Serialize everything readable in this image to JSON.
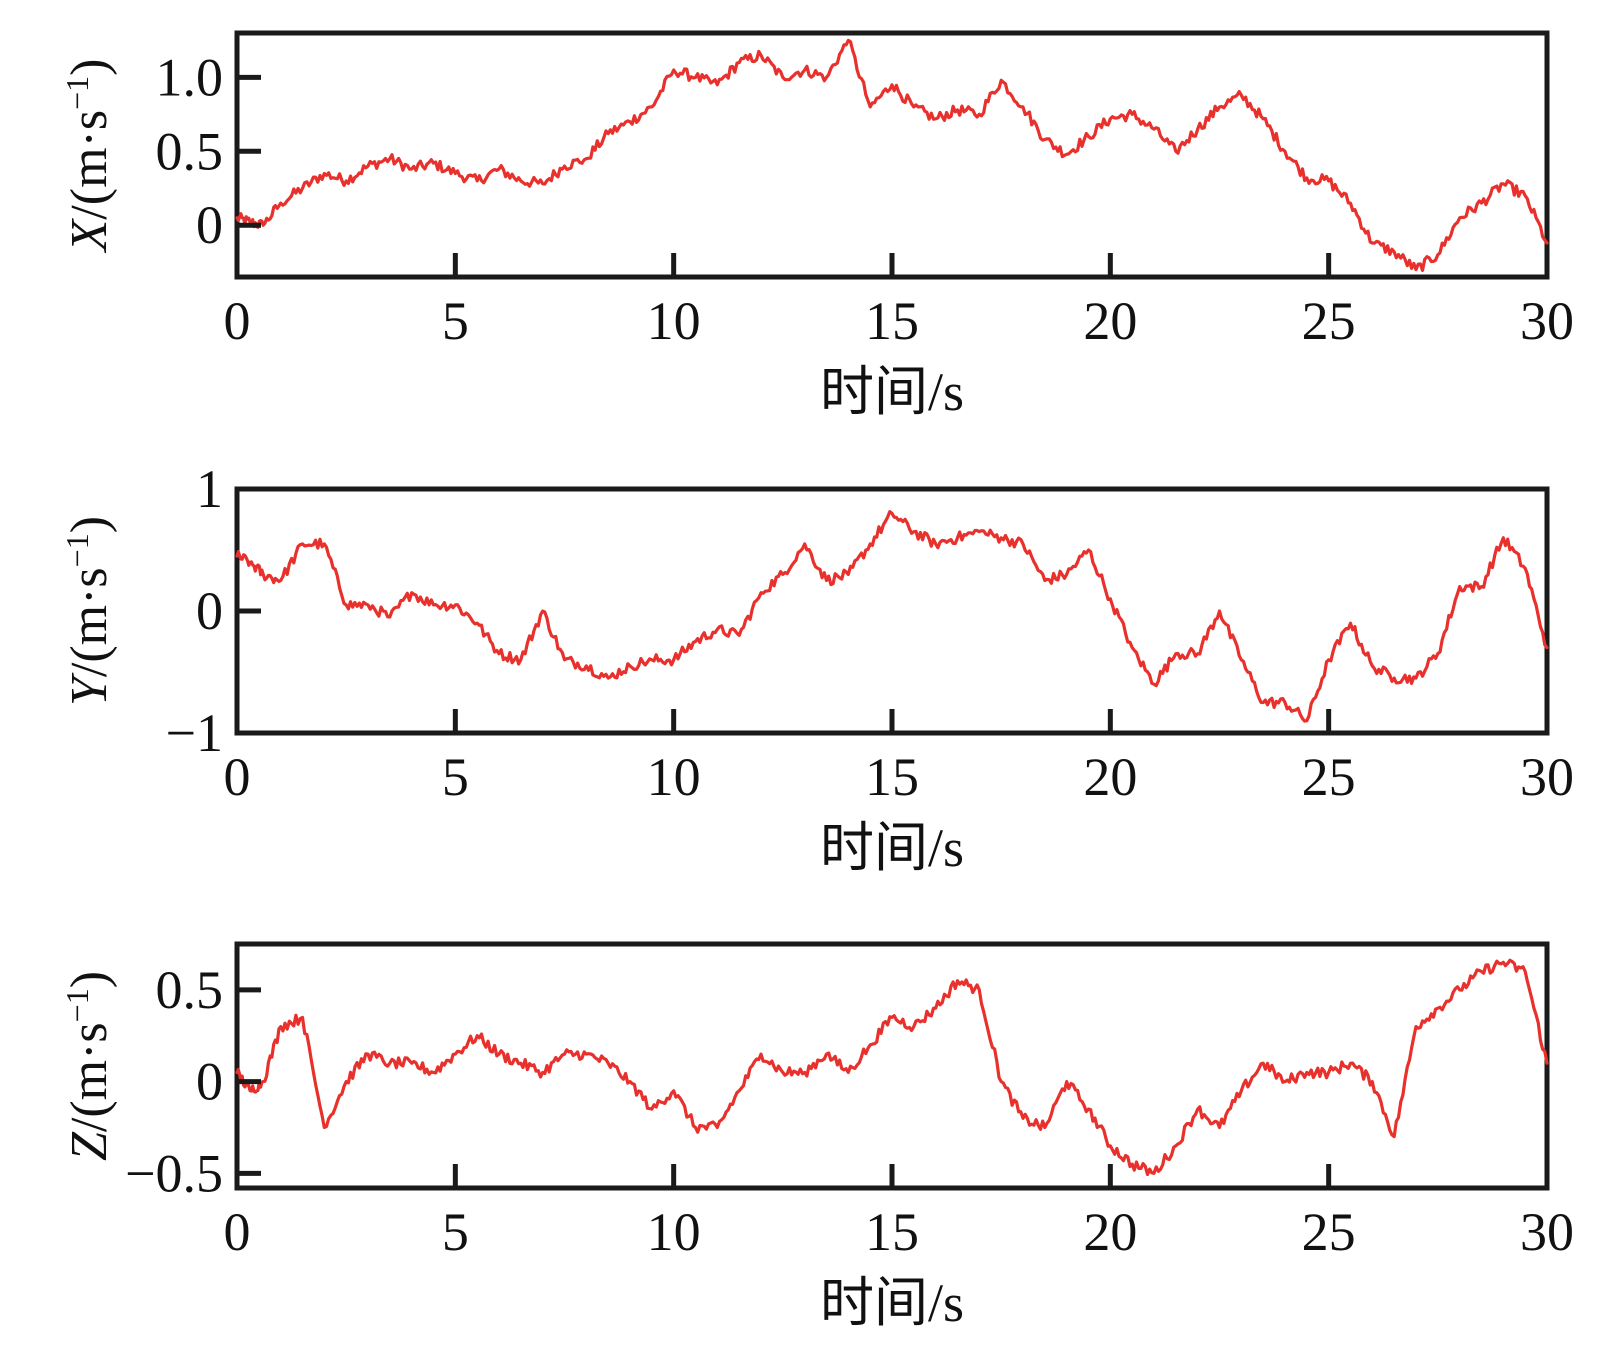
{
  "colors": {
    "series": "#e8312c",
    "axes": "#1a1a1a"
  },
  "chart_data": [
    {
      "type": "line",
      "xlabel": "时间/s",
      "ylabel": "X/(m·s⁻¹)",
      "ylabel_var": "X",
      "ylabel_unit": "/(m·s",
      "ylabel_sup": "−1",
      "xlim": [
        0,
        30
      ],
      "ylim": [
        -0.35,
        1.3
      ],
      "xticks": [
        0,
        5,
        10,
        15,
        20,
        25,
        30
      ],
      "xtick_labels": [
        "0",
        "5",
        "10",
        "15",
        "20",
        "25",
        "30"
      ],
      "yticks": [
        0,
        0.5,
        1.0
      ],
      "ytick_labels": [
        "0",
        "0.5",
        "1.0"
      ],
      "series": [
        {
          "x": [
            0,
            0.3,
            0.6,
            1,
            1.5,
            2,
            2.5,
            3,
            3.5,
            4,
            4.5,
            5,
            5.5,
            6,
            6.5,
            7,
            7.5,
            8,
            8.5,
            9,
            9.5,
            10,
            10.5,
            11,
            11.5,
            12,
            12.5,
            13,
            13.5,
            14,
            14.5,
            15,
            15.5,
            16,
            16.5,
            17,
            17.5,
            18,
            18.5,
            19,
            19.5,
            20,
            20.5,
            21,
            21.5,
            22,
            22.5,
            23,
            23.5,
            24,
            24.5,
            25,
            25.5,
            26,
            26.5,
            27,
            27.5,
            28,
            28.5,
            29,
            29.5,
            30
          ],
          "y": [
            0.05,
            0.02,
            0.0,
            0.15,
            0.25,
            0.35,
            0.3,
            0.4,
            0.45,
            0.38,
            0.42,
            0.35,
            0.3,
            0.38,
            0.3,
            0.28,
            0.4,
            0.45,
            0.62,
            0.7,
            0.8,
            1.05,
            1.0,
            0.95,
            1.1,
            1.15,
            1.0,
            1.05,
            1.0,
            1.25,
            0.8,
            0.95,
            0.8,
            0.72,
            0.78,
            0.75,
            0.98,
            0.8,
            0.58,
            0.48,
            0.6,
            0.72,
            0.75,
            0.65,
            0.5,
            0.65,
            0.8,
            0.88,
            0.72,
            0.5,
            0.32,
            0.3,
            0.15,
            -0.12,
            -0.18,
            -0.3,
            -0.2,
            0.05,
            0.15,
            0.28,
            0.2,
            -0.12
          ]
        }
      ]
    },
    {
      "type": "line",
      "xlabel": "时间/s",
      "ylabel": "Y/(m·s⁻¹)",
      "ylabel_var": "Y",
      "ylabel_unit": "/(m·s",
      "ylabel_sup": "−1",
      "xlim": [
        0,
        30
      ],
      "ylim": [
        -1,
        1
      ],
      "xticks": [
        0,
        5,
        10,
        15,
        20,
        25,
        30
      ],
      "xtick_labels": [
        "0",
        "5",
        "10",
        "15",
        "20",
        "25",
        "30"
      ],
      "yticks": [
        -1,
        0,
        1
      ],
      "ytick_labels": [
        "−1",
        "0",
        "1"
      ],
      "series": [
        {
          "x": [
            0,
            0.3,
            0.6,
            1,
            1.5,
            2,
            2.5,
            3,
            3.5,
            4,
            4.5,
            5,
            5.5,
            6,
            6.5,
            7,
            7.5,
            8,
            8.5,
            9,
            9.5,
            10,
            10.5,
            11,
            11.5,
            12,
            12.5,
            13,
            13.5,
            14,
            14.5,
            15,
            15.5,
            16,
            16.5,
            17,
            17.5,
            18,
            18.5,
            19,
            19.5,
            20,
            20.5,
            21,
            21.5,
            22,
            22.5,
            23,
            23.5,
            24,
            24.5,
            25,
            25.5,
            26,
            26.5,
            27,
            27.5,
            28,
            28.5,
            29,
            29.5,
            30
          ],
          "y": [
            0.45,
            0.4,
            0.3,
            0.25,
            0.55,
            0.55,
            0.05,
            0.05,
            -0.05,
            0.15,
            0.05,
            0.05,
            -0.1,
            -0.35,
            -0.4,
            0.0,
            -0.4,
            -0.45,
            -0.55,
            -0.45,
            -0.4,
            -0.4,
            -0.25,
            -0.15,
            -0.2,
            0.15,
            0.3,
            0.55,
            0.25,
            0.3,
            0.55,
            0.8,
            0.65,
            0.55,
            0.6,
            0.65,
            0.6,
            0.55,
            0.25,
            0.3,
            0.5,
            0.1,
            -0.3,
            -0.6,
            -0.35,
            -0.35,
            0.0,
            -0.4,
            -0.75,
            -0.75,
            -0.9,
            -0.4,
            -0.1,
            -0.45,
            -0.55,
            -0.55,
            -0.35,
            0.2,
            0.2,
            0.6,
            0.35,
            -0.3
          ]
        }
      ]
    },
    {
      "type": "line",
      "xlabel": "时间/s",
      "ylabel": "Z/(m·s⁻¹)",
      "ylabel_var": "Z",
      "ylabel_unit": "/(m·s",
      "ylabel_sup": "−1",
      "xlim": [
        0,
        30
      ],
      "ylim": [
        -0.58,
        0.75
      ],
      "xticks": [
        0,
        5,
        10,
        15,
        20,
        25,
        30
      ],
      "xtick_labels": [
        "0",
        "5",
        "10",
        "15",
        "20",
        "25",
        "30"
      ],
      "yticks": [
        -0.5,
        0,
        0.5
      ],
      "ytick_labels": [
        "−0.5",
        "0",
        "0.5"
      ],
      "series": [
        {
          "x": [
            0,
            0.3,
            0.6,
            1,
            1.5,
            2,
            2.5,
            3,
            3.5,
            4,
            4.5,
            5,
            5.5,
            6,
            6.5,
            7,
            7.5,
            8,
            8.5,
            9,
            9.5,
            10,
            10.5,
            11,
            11.5,
            12,
            12.5,
            13,
            13.5,
            14,
            14.5,
            15,
            15.5,
            16,
            16.5,
            17,
            17.5,
            18,
            18.5,
            19,
            19.5,
            20,
            20.5,
            21,
            21.5,
            22,
            22.5,
            23,
            23.5,
            24,
            24.5,
            25,
            25.5,
            26,
            26.5,
            27,
            27.5,
            28,
            28.5,
            29,
            29.5,
            30
          ],
          "y": [
            0.05,
            -0.05,
            0.0,
            0.3,
            0.35,
            -0.25,
            0.0,
            0.15,
            0.1,
            0.1,
            0.05,
            0.15,
            0.25,
            0.15,
            0.1,
            0.05,
            0.15,
            0.15,
            0.1,
            0.0,
            -0.15,
            -0.05,
            -0.25,
            -0.25,
            -0.05,
            0.15,
            0.05,
            0.05,
            0.15,
            0.05,
            0.2,
            0.35,
            0.3,
            0.4,
            0.55,
            0.5,
            0.0,
            -0.2,
            -0.25,
            0.0,
            -0.15,
            -0.35,
            -0.45,
            -0.5,
            -0.35,
            -0.15,
            -0.25,
            -0.05,
            0.1,
            0.0,
            0.05,
            0.05,
            0.1,
            0.0,
            -0.3,
            0.3,
            0.4,
            0.5,
            0.6,
            0.65,
            0.6,
            0.1
          ]
        }
      ]
    }
  ]
}
